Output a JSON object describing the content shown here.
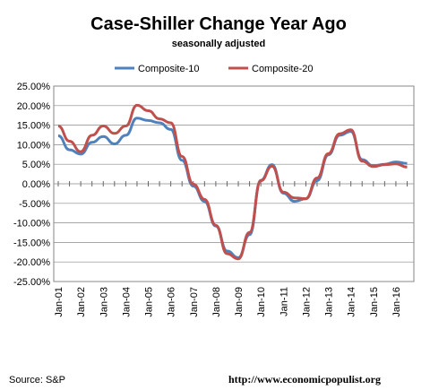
{
  "chart_data": {
    "type": "line",
    "title": "Case-Shiller Change Year Ago",
    "subtitle": "seasonally adjusted",
    "ylim": [
      -25,
      25
    ],
    "yticks": [
      "25.00%",
      "20.00%",
      "15.00%",
      "10.00%",
      "5.00%",
      "0.00%",
      "-5.00%",
      "-10.00%",
      "-15.00%",
      "-20.00%",
      "-25.00%"
    ],
    "xticks": [
      "Jan-01",
      "Jan-02",
      "Jan-03",
      "Jan-04",
      "Jan-05",
      "Jan-06",
      "Jan-07",
      "Jan-08",
      "Jan-09",
      "Jan-10",
      "Jan-11",
      "Jan-12",
      "Jan-13",
      "Jan-14",
      "Jan-15",
      "Jan-16"
    ],
    "grid": true,
    "legend_position": "top",
    "x": [
      "2001-01",
      "2001-07",
      "2002-01",
      "2002-07",
      "2003-01",
      "2003-07",
      "2004-01",
      "2004-07",
      "2005-01",
      "2005-07",
      "2006-01",
      "2006-07",
      "2007-01",
      "2007-07",
      "2008-01",
      "2008-07",
      "2009-01",
      "2009-07",
      "2010-01",
      "2010-07",
      "2011-01",
      "2011-07",
      "2012-01",
      "2012-07",
      "2013-01",
      "2013-07",
      "2014-01",
      "2014-07",
      "2015-01",
      "2015-07",
      "2016-01",
      "2016-07"
    ],
    "series": [
      {
        "name": "Composite-10",
        "color": "#4f81bd",
        "values": [
          12.3,
          8.7,
          7.6,
          10.6,
          12.1,
          10.2,
          12.4,
          16.8,
          16.2,
          15.6,
          13.9,
          6.0,
          -0.6,
          -4.5,
          -10.8,
          -17.2,
          -18.9,
          -13.0,
          0.9,
          4.9,
          -2.4,
          -4.5,
          -3.8,
          0.8,
          7.4,
          12.4,
          13.4,
          6.2,
          4.6,
          5.0,
          5.6,
          5.2
        ]
      },
      {
        "name": "Composite-20",
        "color": "#c0504d",
        "values": [
          14.8,
          10.9,
          8.2,
          12.4,
          14.8,
          12.9,
          14.8,
          20.1,
          18.7,
          16.6,
          15.6,
          7.0,
          -0.1,
          -4.0,
          -10.6,
          -17.9,
          -19.2,
          -12.4,
          0.8,
          4.5,
          -2.1,
          -3.6,
          -3.8,
          1.5,
          7.7,
          12.8,
          13.8,
          5.8,
          4.4,
          4.9,
          5.1,
          4.3
        ]
      }
    ]
  },
  "footer": {
    "source": "Source: S&P",
    "url": "http://www.economicpopulist.org"
  }
}
